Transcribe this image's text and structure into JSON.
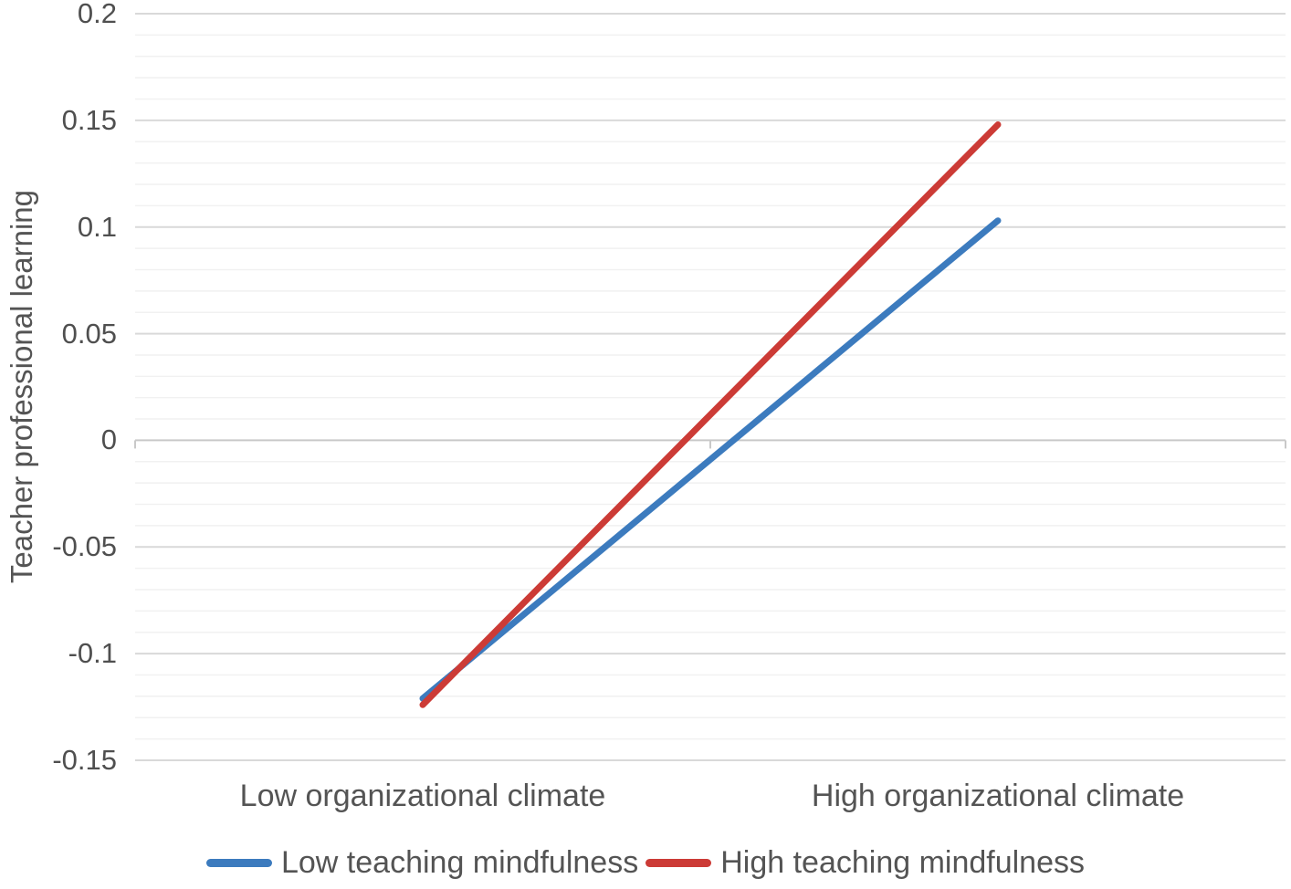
{
  "figure": {
    "background": "#ffffff",
    "text_color": "#545454"
  },
  "chart_data": {
    "type": "line",
    "title": "",
    "xlabel": "",
    "ylabel": "Teacher professional learning",
    "categories": [
      "Low organizational climate",
      "High organizational climate"
    ],
    "series": [
      {
        "name": "Low teaching mindfulness",
        "color": "#3C7BBE",
        "values": [
          -0.121,
          0.103
        ]
      },
      {
        "name": "High teaching mindfulness",
        "color": "#CC3B36",
        "values": [
          -0.124,
          0.148
        ]
      }
    ],
    "ylim": [
      -0.15,
      0.2
    ],
    "y_major_step": 0.05,
    "y_minor_step": 0.01,
    "y_tick_labels": [
      "0.2",
      "0.15",
      "0.1",
      "0.05",
      "0",
      "-0.05",
      "-0.1",
      "-0.15"
    ],
    "grid": "horizontal, minor and major gridlines on",
    "legend_position": "bottom-center",
    "styles": {
      "gridline_minor_color": "#f1f1f1",
      "gridline_major_color": "#d9d9d9",
      "axis_line_color": "#c9c9c9",
      "line_width": 7
    }
  }
}
